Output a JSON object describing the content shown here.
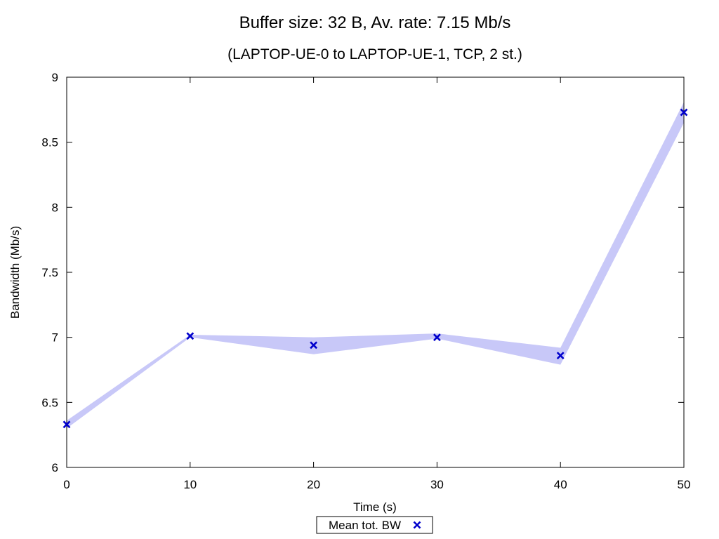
{
  "chart_data": {
    "type": "line",
    "title": "Buffer size: 32 B, Av. rate: 7.15 Mb/s",
    "subtitle": "(LAPTOP-UE-0 to LAPTOP-UE-1, TCP, 2 st.)",
    "xlabel": "Time (s)",
    "ylabel": "Bandwidth (Mb/s)",
    "xlim": [
      0,
      50
    ],
    "ylim": [
      6,
      9
    ],
    "xticks": [
      0,
      10,
      20,
      30,
      40,
      50
    ],
    "yticks": [
      6,
      6.5,
      7,
      7.5,
      8,
      8.5,
      9
    ],
    "xtick_labels": [
      "0",
      "10",
      "20",
      "30",
      "40",
      "50"
    ],
    "ytick_labels": [
      "6",
      "6.5",
      "7",
      "7.5",
      "8",
      "8.5",
      "9"
    ],
    "grid": false,
    "legend_position": "bottom-center",
    "series": [
      {
        "name": "Mean tot. BW",
        "marker": "x",
        "color": "#0000cc",
        "x": [
          0,
          10,
          20,
          30,
          40,
          50
        ],
        "y": [
          6.33,
          7.01,
          6.94,
          7.0,
          6.86,
          8.73
        ]
      }
    ],
    "band": {
      "color": "#c8c8f8",
      "x": [
        0,
        10,
        20,
        30,
        40,
        50
      ],
      "lower": [
        6.3,
        7.0,
        6.87,
        6.99,
        6.79,
        8.65
      ],
      "upper": [
        6.36,
        7.02,
        7.0,
        7.03,
        6.92,
        8.81
      ]
    }
  }
}
